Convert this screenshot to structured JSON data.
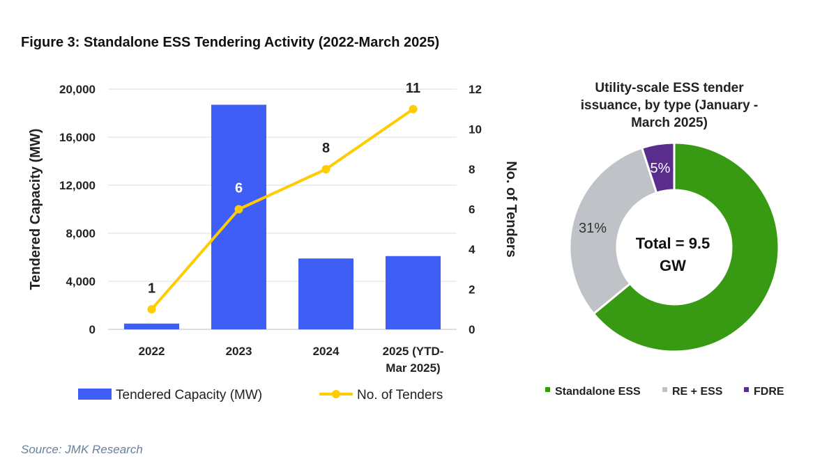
{
  "title": "Figure 3: Standalone ESS Tendering Activity (2022-March 2025)",
  "source": "Source: JMK Research",
  "chart_data": [
    {
      "type": "bar+line",
      "categories": [
        [
          "2022"
        ],
        [
          "2023"
        ],
        [
          "2024"
        ],
        [
          "2025 (YTD-",
          "Mar 2025)"
        ]
      ],
      "series": [
        {
          "name": "Tendered Capacity (MW)",
          "type": "bar",
          "axis": "left",
          "values": [
            480,
            18700,
            5900,
            6100
          ],
          "color": "#3f5ef5"
        },
        {
          "name": "No. of Tenders",
          "type": "line",
          "axis": "right",
          "values": [
            1,
            6,
            8,
            11
          ],
          "data_labels": [
            "1",
            "6",
            "8",
            "11"
          ],
          "color": "#ffcc00"
        }
      ],
      "ylabel": "Tendered Capacity (MW)",
      "ylim": [
        0,
        20000
      ],
      "yticks": [
        "0",
        "4,000",
        "8,000",
        "12,000",
        "16,000",
        "20,000"
      ],
      "y2label": "No. of Tenders",
      "y2lim": [
        0,
        12
      ],
      "y2ticks": [
        "0",
        "2",
        "4",
        "6",
        "8",
        "10",
        "12"
      ],
      "grid": true,
      "legend": "bottom"
    },
    {
      "type": "pie",
      "donut": true,
      "title": [
        "Utility-scale ESS tender",
        "issuance, by type (January -",
        "March 2025)"
      ],
      "center_label": [
        "Total = 9.5",
        "GW"
      ],
      "slices": [
        {
          "name": "Standalone ESS",
          "value": 64,
          "label": "64%",
          "color": "#379a12"
        },
        {
          "name": "RE + ESS",
          "value": 31,
          "label": "31%",
          "color": "#bfc3c8"
        },
        {
          "name": "FDRE",
          "value": 5,
          "label": "5%",
          "color": "#5a2d8c"
        }
      ],
      "legend": "bottom"
    }
  ]
}
